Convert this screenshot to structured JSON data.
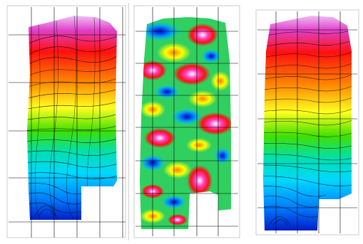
{
  "panels": [
    {
      "name": "contour-map-left",
      "colormap": [
        "#f0d0ff",
        "#e040c0",
        "#ff0000",
        "#ff8000",
        "#ffff00",
        "#00d000",
        "#00e0e0",
        "#0080ff",
        "#0000c0"
      ]
    },
    {
      "name": "residual-map-middle",
      "colormap": [
        "#0000c0",
        "#00c0ff",
        "#00d000",
        "#ffff00",
        "#ff8000",
        "#ff0000",
        "#ff40c0",
        "#ffffff"
      ]
    },
    {
      "name": "contour-map-right",
      "colormap": [
        "#f0d0ff",
        "#e040c0",
        "#ff0000",
        "#ff8000",
        "#ffff00",
        "#00d000",
        "#00e0e0",
        "#0080ff",
        "#0000c0"
      ]
    }
  ]
}
